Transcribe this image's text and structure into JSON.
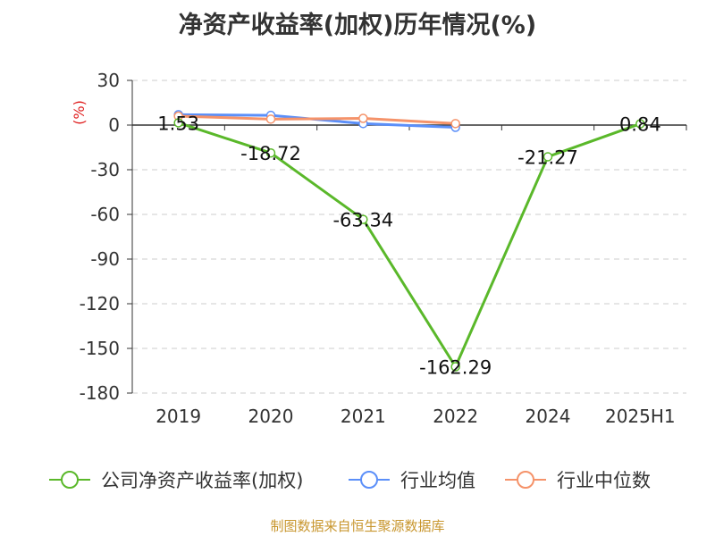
{
  "chart_data": {
    "type": "line",
    "title": "净资产收益率(加权)历年情况(%)",
    "ylabel": "(%)",
    "categories": [
      "2019",
      "2020",
      "2021",
      "2022",
      "2024",
      "2025H1"
    ],
    "ylim": [
      -180,
      30
    ],
    "yticks": [
      30,
      0,
      -30,
      -60,
      -90,
      -120,
      -150,
      -180
    ],
    "grid": true,
    "legend_position": "bottom",
    "series": [
      {
        "name": "公司净资产收益率(加权)",
        "color": "#5ab82a",
        "values": [
          1.53,
          -18.72,
          -63.34,
          -162.29,
          -21.27,
          0.84
        ],
        "labels": [
          "1.53",
          "-18.72",
          "-63.34",
          "-162.29",
          "-21.27",
          "0.84"
        ]
      },
      {
        "name": "行业均值",
        "color": "#5b8ff9",
        "values": [
          7.0,
          6.5,
          1.0,
          -1.5,
          null,
          null
        ]
      },
      {
        "name": "行业中位数",
        "color": "#f5936a",
        "values": [
          6.0,
          4.0,
          4.5,
          1.0,
          null,
          null
        ]
      }
    ]
  },
  "source_note": "制图数据来自恒生聚源数据库",
  "colors": {
    "axis": "#333333",
    "grid": "#cccccc",
    "unit_label": "#e02020",
    "source_note": "#c8962e"
  }
}
